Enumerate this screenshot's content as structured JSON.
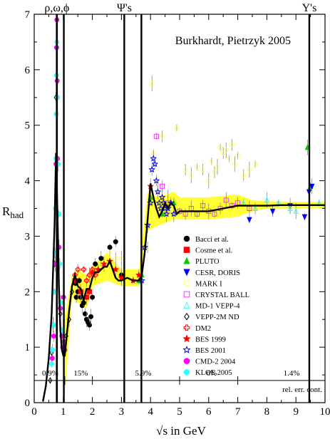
{
  "chart_data": {
    "type": "scatter",
    "title": "Burkhardt, Pietrzyk 2005",
    "xlabel": "√s in GeV",
    "ylabel": "R",
    "ylabel_sub": "had",
    "xlim": [
      0,
      10
    ],
    "ylim": [
      0,
      7
    ],
    "x_ticks": [
      "0",
      "1",
      "2",
      "3",
      "4",
      "5",
      "6",
      "7",
      "8",
      "9",
      "10"
    ],
    "y_ticks": [
      "0",
      "1",
      "2",
      "3",
      "4",
      "5",
      "6",
      "7"
    ],
    "resonance_labels": [
      "ρ,ω,ϕ",
      "Ψ's",
      "Υ's"
    ],
    "resonance_positions": [
      0.78,
      3.1,
      9.46
    ],
    "resonance_spikes": [
      {
        "x": 0.775,
        "peak": 7.0
      },
      {
        "x": 0.782,
        "peak": 7.0
      },
      {
        "x": 1.019,
        "peak": 7.0
      },
      {
        "x": 3.097,
        "peak": 7.0
      },
      {
        "x": 3.686,
        "peak": 7.0
      },
      {
        "x": 9.46,
        "peak": 7.0
      },
      {
        "x": 10.02,
        "peak": 7.0
      }
    ],
    "error_band_label": "rel. err. cont.",
    "error_regions": [
      {
        "label": "0.9%",
        "x": 0.55
      },
      {
        "label": "15%",
        "x": 1.6
      },
      {
        "label": "5.9%",
        "x": 3.75
      },
      {
        "label": "6%",
        "x": 6.1
      },
      {
        "label": "1.4%",
        "x": 8.85
      }
    ],
    "error_dividers": [
      1.05,
      2.0,
      5.0,
      7.0
    ],
    "fit_curve": {
      "x": [
        0.3,
        0.4,
        0.5,
        0.6,
        0.7,
        0.75,
        0.8,
        0.85,
        0.9,
        0.95,
        1.0,
        1.05,
        1.1,
        1.2,
        1.3,
        1.4,
        1.5,
        1.6,
        1.7,
        1.8,
        1.9,
        2.0,
        2.1,
        2.2,
        2.3,
        2.4,
        2.5,
        2.6,
        2.7,
        2.8,
        2.9,
        3.0,
        3.2,
        3.4,
        3.6,
        3.7,
        3.8,
        3.9,
        4.0,
        4.1,
        4.2,
        4.3,
        4.4,
        4.5,
        4.6,
        4.7,
        4.8,
        4.9,
        5.0,
        5.5,
        6.0,
        6.5,
        7.0,
        7.5,
        8.0,
        8.5,
        9.0,
        9.5,
        10.0
      ],
      "y": [
        0.02,
        0.3,
        0.8,
        1.6,
        3.2,
        4.5,
        3.4,
        2.1,
        1.3,
        0.95,
        0.85,
        0.85,
        1.1,
        1.65,
        2.1,
        2.3,
        2.1,
        2.05,
        1.85,
        2.05,
        2.05,
        2.25,
        2.35,
        2.35,
        2.4,
        2.45,
        2.45,
        2.55,
        2.4,
        2.25,
        2.2,
        2.2,
        2.25,
        2.2,
        2.2,
        2.3,
        2.7,
        3.3,
        3.95,
        3.7,
        3.5,
        3.35,
        3.45,
        3.6,
        3.5,
        3.6,
        3.55,
        3.4,
        3.45,
        3.45,
        3.45,
        3.5,
        3.55,
        3.55,
        3.55,
        3.56,
        3.56,
        3.56,
        3.56
      ]
    },
    "band": {
      "x": [
        1.05,
        1.3,
        1.5,
        1.8,
        2.0,
        2.5,
        3.0,
        3.6,
        3.9,
        4.3,
        4.8,
        5.0,
        6.0,
        7.0,
        7.5,
        8.0,
        9.0,
        10.0
      ],
      "lower": [
        0.1,
        1.9,
        1.8,
        1.7,
        2.1,
        2.2,
        2.1,
        2.1,
        3.1,
        3.2,
        3.3,
        3.3,
        3.3,
        3.35,
        3.45,
        3.5,
        3.5,
        3.5
      ],
      "upper": [
        1.5,
        2.3,
        2.4,
        2.3,
        2.45,
        2.7,
        2.4,
        2.4,
        3.8,
        3.7,
        3.8,
        3.7,
        3.7,
        3.75,
        3.65,
        3.63,
        3.62,
        3.62
      ]
    },
    "legend": [
      {
        "name": "Bacci et al.",
        "color": "#000000",
        "marker": "circle-filled"
      },
      {
        "name": "Cosme et al.",
        "color": "#ff0000",
        "marker": "square-filled"
      },
      {
        "name": "PLUTO",
        "color": "#00cc00",
        "marker": "triangle-up-filled"
      },
      {
        "name": "CESR, DORIS",
        "color": "#0000ff",
        "marker": "triangle-down-filled"
      },
      {
        "name": "MARK I",
        "color": "#ffff66",
        "marker": "circle-open"
      },
      {
        "name": "CRYSTAL BALL",
        "color": "#ff33ff",
        "marker": "square-open"
      },
      {
        "name": "MD-1 VEPP-4",
        "color": "#33ffff",
        "marker": "triangle-up-open"
      },
      {
        "name": "VEPP-2M ND",
        "color": "#000000",
        "marker": "diamond-open"
      },
      {
        "name": "DM2",
        "color": "#ff0000",
        "marker": "cross-open"
      },
      {
        "name": "BES 1999",
        "color": "#ff0000",
        "marker": "star-filled"
      },
      {
        "name": "BES 2001",
        "color": "#0000ff",
        "marker": "star-open"
      },
      {
        "name": "CMD-2 2004",
        "color": "#ff00ff",
        "marker": "circle-filled"
      },
      {
        "name": "KLOE 2005",
        "color": "#33ffff",
        "marker": "circle-filled"
      }
    ],
    "legend_placement": "center-right",
    "series": [
      {
        "name": "Bacci et al.",
        "x": [
          1.42,
          1.45,
          1.5,
          1.55,
          1.6,
          1.65,
          1.7,
          1.75,
          1.8,
          1.85,
          1.9,
          1.95,
          2.0,
          2.1,
          2.3,
          2.6,
          2.8,
          3.0
        ],
        "y": [
          2.15,
          1.9,
          2.0,
          2.2,
          1.9,
          1.75,
          1.8,
          1.6,
          1.5,
          1.45,
          1.4,
          1.55,
          1.9,
          2.5,
          2.6,
          2.8,
          2.9,
          2.3
        ]
      },
      {
        "name": "Cosme et al.",
        "x": [
          1.4,
          1.6,
          1.8,
          1.9
        ],
        "y": [
          2.2,
          2.0,
          1.9,
          2.0
        ]
      },
      {
        "name": "PLUTO",
        "x": [
          3.6,
          3.7,
          4.0,
          4.4,
          4.8,
          9.4,
          9.5
        ],
        "y": [
          2.2,
          2.3,
          3.7,
          3.4,
          3.6,
          4.6,
          3.9
        ]
      },
      {
        "name": "CESR, DORIS",
        "x": [
          7.4,
          8.2,
          8.8,
          9.3,
          9.45,
          9.55
        ],
        "y": [
          3.3,
          3.45,
          3.55,
          3.35,
          3.8,
          3.9
        ]
      },
      {
        "name": "MARK I",
        "x": [
          2.6,
          2.8,
          3.0,
          3.6,
          3.9,
          4.05,
          4.1,
          4.4,
          4.6,
          4.9,
          5.2,
          5.4,
          5.6,
          5.8,
          6.0,
          6.1,
          6.2,
          6.3,
          6.4,
          6.5,
          6.6,
          6.7,
          6.8,
          6.9,
          7.0,
          7.2,
          7.4,
          7.6
        ],
        "y": [
          2.7,
          2.6,
          2.6,
          2.3,
          2.8,
          5.75,
          4.5,
          4.8,
          3.7,
          4.95,
          4.2,
          4.1,
          4.25,
          4.2,
          4.0,
          4.35,
          4.15,
          4.25,
          4.6,
          4.5,
          4.55,
          4.4,
          4.65,
          4.3,
          4.45,
          4.1,
          4.2,
          4.3
        ]
      },
      {
        "name": "CRYSTAL BALL",
        "x": [
          4.2,
          4.4,
          4.6,
          5.0,
          5.2,
          5.4,
          5.6,
          5.8,
          6.0,
          6.2,
          6.4,
          6.6,
          6.8,
          7.0,
          7.4
        ],
        "y": [
          4.8,
          3.9,
          3.6,
          3.45,
          3.4,
          3.5,
          3.4,
          3.55,
          3.45,
          3.4,
          3.5,
          3.65,
          3.55,
          3.6,
          3.5
        ]
      },
      {
        "name": "MD-1 VEPP-4",
        "x": [
          7.2,
          7.6,
          8.0,
          8.4,
          8.8,
          9.0,
          9.8,
          10.0
        ],
        "y": [
          3.6,
          3.5,
          3.65,
          3.6,
          3.5,
          3.45,
          3.6,
          3.55
        ]
      },
      {
        "name": "VEPP-2M ND",
        "x": [
          0.55,
          0.6,
          0.65,
          0.7,
          0.75,
          0.85,
          0.9,
          0.95,
          1.0,
          1.05,
          1.1,
          1.2,
          1.3
        ],
        "y": [
          0.4,
          0.9,
          1.4,
          2.5,
          5.5,
          2.8,
          1.6,
          1.2,
          1.0,
          1.05,
          1.2,
          1.5,
          2.0
        ]
      },
      {
        "name": "DM2",
        "x": [
          1.4,
          1.5,
          1.6,
          1.7,
          1.8,
          1.9,
          2.0,
          2.1
        ],
        "y": [
          2.3,
          2.4,
          2.0,
          2.4,
          2.2,
          2.3,
          2.4,
          2.3
        ]
      },
      {
        "name": "BES 1999",
        "x": [
          2.0,
          2.2,
          2.4,
          2.6,
          2.8,
          3.0,
          3.4,
          3.6,
          4.0
        ],
        "y": [
          2.35,
          2.4,
          2.5,
          2.55,
          2.4,
          2.25,
          2.2,
          2.3,
          3.9
        ]
      },
      {
        "name": "BES 2001",
        "x": [
          3.7,
          3.8,
          3.9,
          4.0,
          4.05,
          4.1,
          4.15,
          4.2,
          4.25,
          4.3,
          4.35,
          4.4,
          4.45,
          4.5,
          4.55,
          4.6,
          4.7,
          4.8
        ],
        "y": [
          2.2,
          2.8,
          3.2,
          3.6,
          4.2,
          4.4,
          4.3,
          4.0,
          3.8,
          3.6,
          3.5,
          3.7,
          3.6,
          3.5,
          3.4,
          3.5,
          3.6,
          3.4
        ]
      },
      {
        "name": "CMD-2 2004",
        "x": [
          0.62,
          0.67,
          0.72,
          0.75,
          0.77,
          0.78,
          0.79,
          0.8,
          0.85,
          0.9,
          0.95,
          0.98,
          1.01,
          1.03,
          1.05
        ],
        "y": [
          0.8,
          1.2,
          2.5,
          4.3,
          6.4,
          6.9,
          5.8,
          4.4,
          2.8,
          1.7,
          1.2,
          1.0,
          1.9,
          1.1,
          0.95
        ]
      },
      {
        "name": "KLOE 2005",
        "x": [
          0.6,
          0.63,
          0.66,
          0.69,
          0.71,
          0.73,
          0.75,
          0.76,
          0.77,
          0.78,
          0.8,
          0.82,
          0.85,
          0.88,
          0.92,
          0.96
        ],
        "y": [
          0.7,
          0.95,
          1.4,
          2.0,
          2.7,
          3.5,
          4.4,
          5.2,
          5.9,
          6.5,
          5.5,
          4.3,
          3.4,
          2.5,
          1.8,
          1.3
        ]
      }
    ]
  }
}
